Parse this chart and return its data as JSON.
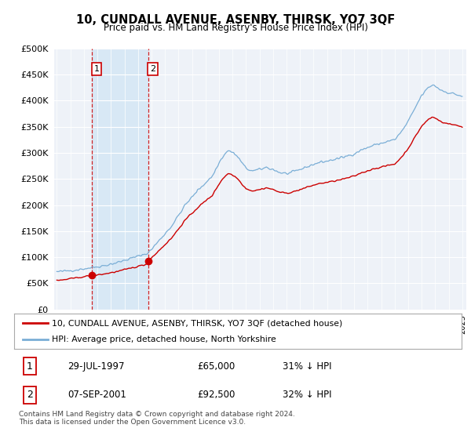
{
  "title": "10, CUNDALL AVENUE, ASENBY, THIRSK, YO7 3QF",
  "subtitle": "Price paid vs. HM Land Registry's House Price Index (HPI)",
  "ylim": [
    0,
    500000
  ],
  "yticks": [
    0,
    50000,
    100000,
    150000,
    200000,
    250000,
    300000,
    350000,
    400000,
    450000,
    500000
  ],
  "plot_bg": "#eef2f8",
  "sale1_year": 1997.58,
  "sale1_price": 65000,
  "sale2_year": 2001.75,
  "sale2_price": 92500,
  "sale1_date_str": "29-JUL-1997",
  "sale1_pct": "31% ↓ HPI",
  "sale2_date_str": "07-SEP-2001",
  "sale2_pct": "32% ↓ HPI",
  "legend_line1": "10, CUNDALL AVENUE, ASENBY, THIRSK, YO7 3QF (detached house)",
  "legend_line2": "HPI: Average price, detached house, North Yorkshire",
  "footer": "Contains HM Land Registry data © Crown copyright and database right 2024.\nThis data is licensed under the Open Government Licence v3.0.",
  "sale_color": "#cc0000",
  "hpi_color": "#7aaed6",
  "shade_color": "#d8e8f5"
}
